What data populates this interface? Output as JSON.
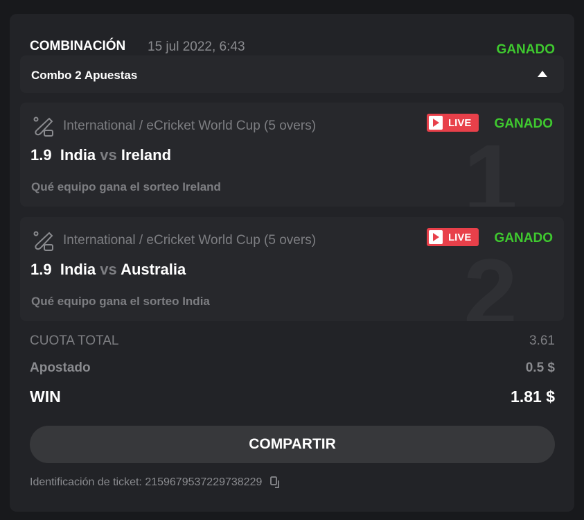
{
  "header": {
    "title": "COMBINACIÓN",
    "date": "15 jul 2022, 6:43",
    "status": "GANADO"
  },
  "combo": {
    "label": "Combo 2 Apuestas",
    "expanded": true
  },
  "legs": [
    {
      "index": "1",
      "competition": "International / eCricket World Cup (5 overs)",
      "live": "LIVE",
      "status": "GANADO",
      "odds": "1.9",
      "home": "India",
      "vs": "vs",
      "away": "Ireland",
      "selection": "Qué equipo gana el sorteo Ireland"
    },
    {
      "index": "2",
      "competition": "International / eCricket World Cup (5 overs)",
      "live": "LIVE",
      "status": "GANADO",
      "odds": "1.9",
      "home": "India",
      "vs": "vs",
      "away": "Australia",
      "selection": "Qué equipo gana el sorteo India"
    }
  ],
  "summary": {
    "total_odds_label": "CUOTA TOTAL",
    "total_odds": "3.61",
    "staked_label": "Apostado",
    "staked": "0.5 $",
    "win_label": "WIN",
    "win": "1.81 $"
  },
  "share_label": "COMPARTIR",
  "ticket": {
    "label": "Identificación de ticket: 2159679537229738229"
  },
  "colors": {
    "won": "#3fc92f",
    "live": "#e8404a",
    "background": "#222327"
  }
}
